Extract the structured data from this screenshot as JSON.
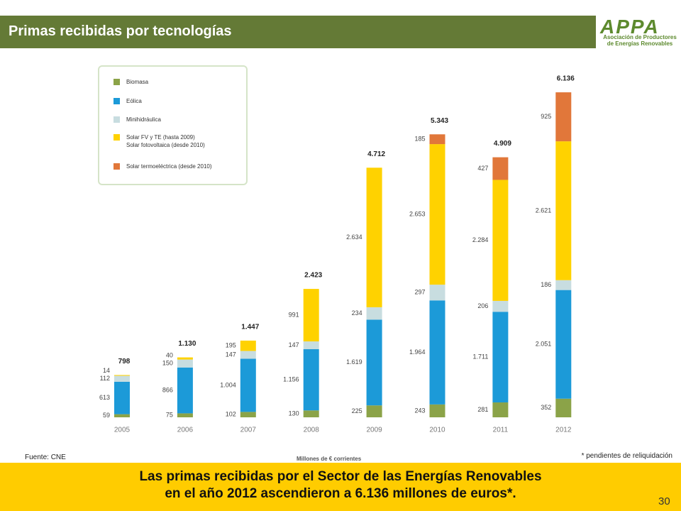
{
  "slide": {
    "title": "Primas recibidas por tecnologías",
    "logo": "APPA",
    "logo_text": "Asociación de Productores\nde Energías Renovables",
    "source": "Fuente: CNE",
    "unit": "Millones de € corrientes",
    "note": "* pendientes de reliquidación",
    "conclusion": "Las primas recibidas por el Sector de las Energías Renovables\nen el año 2012 ascendieron a 6.136 millones de euros*.",
    "page_number": "30"
  },
  "chart_data": {
    "type": "stacked_bar",
    "categories": [
      "2005",
      "2006",
      "2007",
      "2008",
      "2009",
      "2010",
      "2011",
      "2012"
    ],
    "series": [
      {
        "name": "Biomasa",
        "color": "#8ba348",
        "values": [
          59,
          75,
          102,
          130,
          225,
          243,
          281,
          352
        ],
        "value_labels": [
          "59",
          "75",
          "102",
          "130",
          "225",
          "243",
          "281",
          "352"
        ]
      },
      {
        "name": "Eólica",
        "color": "#1c9ad8",
        "values": [
          613,
          866,
          1004,
          1156,
          1619,
          1964,
          1711,
          2051
        ],
        "value_labels": [
          "613",
          "866",
          "1.004",
          "1.156",
          "1.619",
          "1.964",
          "1.711",
          "2.051"
        ]
      },
      {
        "name": "Minihidráulica",
        "color": "#c8dde0",
        "values": [
          112,
          150,
          147,
          147,
          234,
          297,
          206,
          186
        ],
        "value_labels": [
          "112",
          "150",
          "147",
          "147",
          "234",
          "297",
          "206",
          "186"
        ]
      },
      {
        "name": "Solar FV y TE (hasta 2009)\nSolar fotovoltaica (desde 2010)",
        "color": "#ffd200",
        "values": [
          14,
          40,
          195,
          991,
          2634,
          2653,
          2284,
          2621
        ],
        "value_labels": [
          "14",
          "40",
          "195",
          "991",
          "2.634",
          "2.653",
          "2.284",
          "2.621"
        ]
      },
      {
        "name": "Solar termoeléctrica (desde 2010)",
        "color": "#e1773a",
        "values": [
          null,
          null,
          null,
          null,
          null,
          185,
          427,
          925
        ],
        "value_labels": [
          null,
          null,
          null,
          null,
          null,
          "185",
          "427",
          "925"
        ]
      }
    ],
    "totals": {
      "values": [
        798,
        1130,
        1447,
        2423,
        4712,
        5343,
        4909,
        6136
      ],
      "value_labels": [
        "798",
        "1.130",
        "1.447",
        "2.423",
        "4.712",
        "5.343",
        "4.909",
        "6.136"
      ]
    }
  }
}
